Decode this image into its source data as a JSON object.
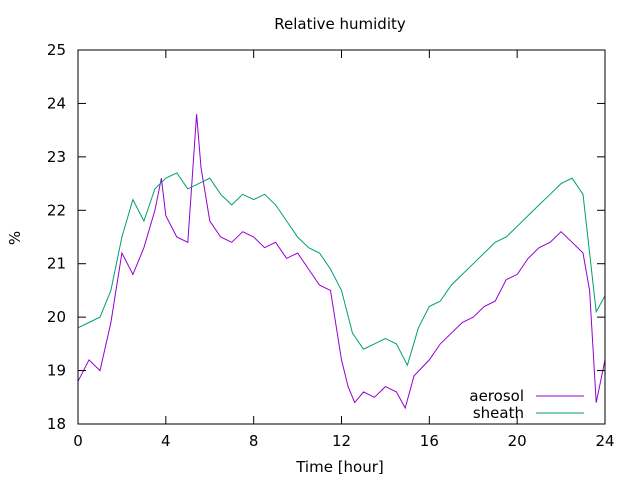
{
  "chart_data": {
    "type": "line",
    "title": "Relative humidity",
    "xlabel": "Time [hour]",
    "ylabel": "%",
    "xlim": [
      0,
      24
    ],
    "ylim": [
      18,
      25
    ],
    "xticks": [
      0,
      4,
      8,
      12,
      16,
      20,
      24
    ],
    "yticks": [
      18,
      19,
      20,
      21,
      22,
      23,
      24,
      25
    ],
    "grid": false,
    "legend_position": "bottom-right",
    "series": [
      {
        "name": "aerosol",
        "color": "#9400d3",
        "x": [
          0,
          0.5,
          1,
          1.5,
          2,
          2.5,
          3,
          3.5,
          3.8,
          4,
          4.5,
          5,
          5.4,
          5.6,
          6,
          6.5,
          7,
          7.5,
          8,
          8.5,
          9,
          9.5,
          10,
          10.5,
          11,
          11.5,
          12,
          12.3,
          12.6,
          13,
          13.5,
          14,
          14.5,
          14.9,
          15.3,
          16,
          16.5,
          17,
          17.5,
          18,
          18.5,
          19,
          19.5,
          20,
          20.5,
          21,
          21.5,
          22,
          22.5,
          23,
          23.3,
          23.6,
          24
        ],
        "y": [
          18.8,
          19.2,
          19.0,
          19.9,
          21.2,
          20.8,
          21.3,
          22.0,
          22.6,
          21.9,
          21.5,
          21.4,
          23.8,
          22.8,
          21.8,
          21.5,
          21.4,
          21.6,
          21.5,
          21.3,
          21.4,
          21.1,
          21.2,
          20.9,
          20.6,
          20.5,
          19.2,
          18.7,
          18.4,
          18.6,
          18.5,
          18.7,
          18.6,
          18.3,
          18.9,
          19.2,
          19.5,
          19.7,
          19.9,
          20.0,
          20.2,
          20.3,
          20.7,
          20.8,
          21.1,
          21.3,
          21.4,
          21.6,
          21.4,
          21.2,
          20.5,
          18.4,
          19.2
        ]
      },
      {
        "name": "sheath",
        "color": "#009e73",
        "x": [
          0,
          0.5,
          1,
          1.5,
          2,
          2.5,
          3,
          3.5,
          4,
          4.5,
          5,
          5.5,
          6,
          6.5,
          7,
          7.5,
          8,
          8.5,
          9,
          9.5,
          10,
          10.5,
          11,
          11.5,
          12,
          12.5,
          13,
          13.5,
          14,
          14.5,
          15,
          15.5,
          16,
          16.5,
          17,
          17.5,
          18,
          18.5,
          19,
          19.5,
          20,
          20.5,
          21,
          21.5,
          22,
          22.5,
          23,
          23.3,
          23.6,
          24
        ],
        "y": [
          19.8,
          19.9,
          20.0,
          20.5,
          21.5,
          22.2,
          21.8,
          22.4,
          22.6,
          22.7,
          22.4,
          22.5,
          22.6,
          22.3,
          22.1,
          22.3,
          22.2,
          22.3,
          22.1,
          21.8,
          21.5,
          21.3,
          21.2,
          20.9,
          20.5,
          19.7,
          19.4,
          19.5,
          19.6,
          19.5,
          19.1,
          19.8,
          20.2,
          20.3,
          20.6,
          20.8,
          21.0,
          21.2,
          21.4,
          21.5,
          21.7,
          21.9,
          22.1,
          22.3,
          22.5,
          22.6,
          22.3,
          21.2,
          20.1,
          20.4
        ]
      }
    ]
  }
}
